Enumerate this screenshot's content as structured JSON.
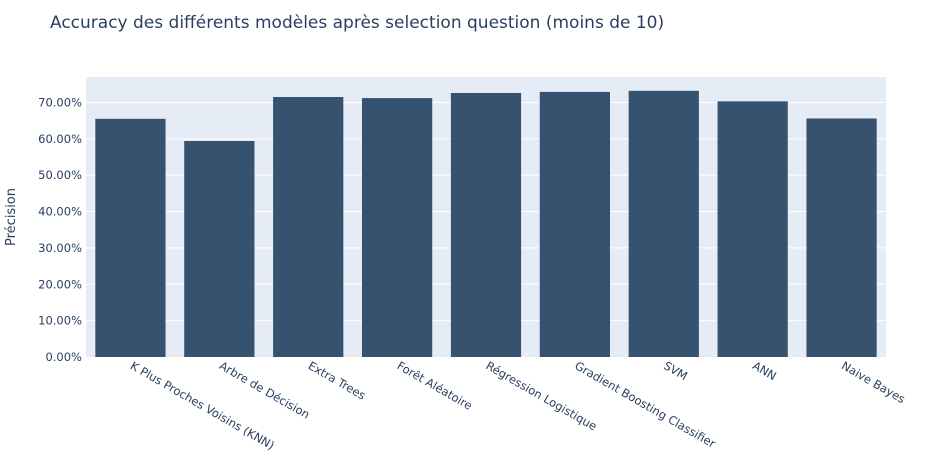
{
  "chart_data": {
    "type": "bar",
    "title": "Accuracy des différents modèles après selection question (moins de 10)",
    "xlabel": "",
    "ylabel": "Précision",
    "categories": [
      "K Plus Proches Voisins (KNN)",
      "Arbre de Décision",
      "Extra Trees",
      "Forêt Aléatoire",
      "Régression Logistique",
      "Gradient Boosting Classifier",
      "SVM",
      "ANN",
      "Naive Bayes"
    ],
    "values": [
      65.5,
      59.4,
      71.5,
      71.2,
      72.6,
      72.9,
      73.2,
      70.3,
      65.6
    ],
    "ylim": [
      0,
      77
    ],
    "yticks": [
      0,
      10,
      20,
      30,
      40,
      50,
      60,
      70
    ],
    "ytick_labels": [
      "0.00%",
      "10.00%",
      "20.00%",
      "30.00%",
      "40.00%",
      "50.00%",
      "60.00%",
      "70.00%"
    ],
    "grid": true,
    "legend": "none",
    "colors": {
      "bar": "#36526e",
      "plot_background": "#e5ecf6",
      "grid": "#ffffff",
      "text": "#2a3f5f"
    }
  }
}
